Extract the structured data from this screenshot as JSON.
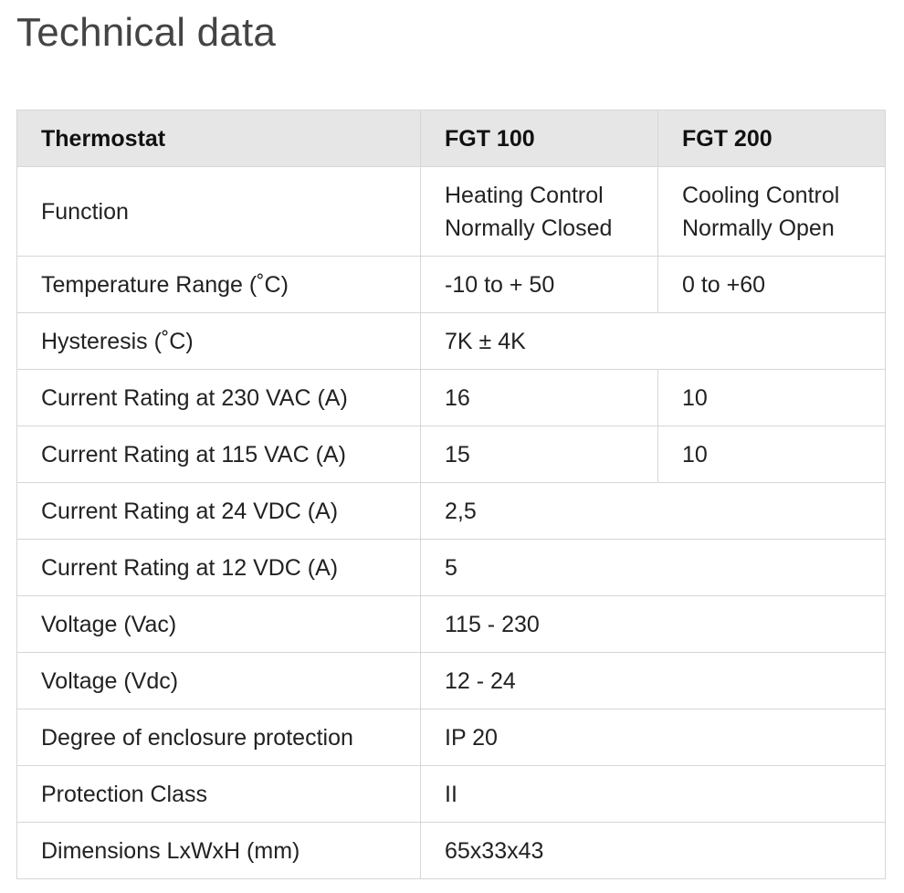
{
  "page": {
    "title": "Technical data"
  },
  "table": {
    "headers": [
      "Thermostat",
      "FGT 100",
      "FGT 200"
    ],
    "rows": [
      {
        "label": "Function",
        "fgt100": [
          "Heating Control",
          "Normally Closed"
        ],
        "fgt200": [
          "Cooling Control",
          "Normally Open"
        ]
      },
      {
        "label": "Temperature Range (˚C)",
        "fgt100": "-10 to + 50",
        "fgt200": "0 to +60"
      },
      {
        "label": "Hysteresis (˚C)",
        "shared": "7K ± 4K"
      },
      {
        "label": "Current Rating at 230 VAC (A)",
        "fgt100": "16",
        "fgt200": "10"
      },
      {
        "label": "Current Rating at 115 VAC (A)",
        "fgt100": "15",
        "fgt200": "10"
      },
      {
        "label": "Current Rating at 24 VDC (A)",
        "shared": "2,5"
      },
      {
        "label": "Current Rating at 12 VDC (A)",
        "shared": "5"
      },
      {
        "label": "Voltage (Vac)",
        "shared": "115 - 230"
      },
      {
        "label": "Voltage (Vdc)",
        "shared": "12 - 24"
      },
      {
        "label": "Degree of enclosure protection",
        "shared": "IP 20"
      },
      {
        "label": "Protection Class",
        "shared": "II"
      },
      {
        "label": "Dimensions LxWxH (mm)",
        "shared": "65x33x43"
      }
    ]
  }
}
